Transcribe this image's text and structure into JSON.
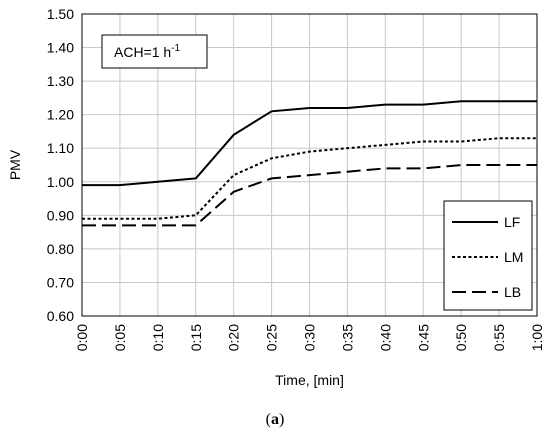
{
  "chart_data": {
    "type": "line",
    "xlabel": "Time, [min]",
    "ylabel": "PMV",
    "x": [
      "0:00",
      "0:05",
      "0:10",
      "0:15",
      "0:20",
      "0:25",
      "0:30",
      "0:35",
      "0:40",
      "0:45",
      "0:50",
      "0:55",
      "1:00"
    ],
    "ylim": [
      0.6,
      1.5
    ],
    "yticks": [
      "0.60",
      "0.70",
      "0.80",
      "0.90",
      "1.00",
      "1.10",
      "1.20",
      "1.30",
      "1.40",
      "1.50"
    ],
    "grid": true,
    "legend_position": "bottom-right",
    "annotation": {
      "base": "ACH=1 h",
      "sup": "-1"
    },
    "series": [
      {
        "name": "LF",
        "dash": "solid",
        "values": [
          0.99,
          0.99,
          1.0,
          1.01,
          1.14,
          1.21,
          1.22,
          1.22,
          1.23,
          1.23,
          1.24,
          1.24,
          1.24
        ]
      },
      {
        "name": "LM",
        "dash": "dotted",
        "values": [
          0.89,
          0.89,
          0.89,
          0.9,
          1.02,
          1.07,
          1.09,
          1.1,
          1.11,
          1.12,
          1.12,
          1.13,
          1.13
        ]
      },
      {
        "name": "LB",
        "dash": "dashed",
        "values": [
          0.87,
          0.87,
          0.87,
          0.87,
          0.97,
          1.01,
          1.02,
          1.03,
          1.04,
          1.04,
          1.05,
          1.05,
          1.05
        ]
      }
    ]
  },
  "caption": {
    "open": "(",
    "letter": "a",
    "close": ")"
  }
}
